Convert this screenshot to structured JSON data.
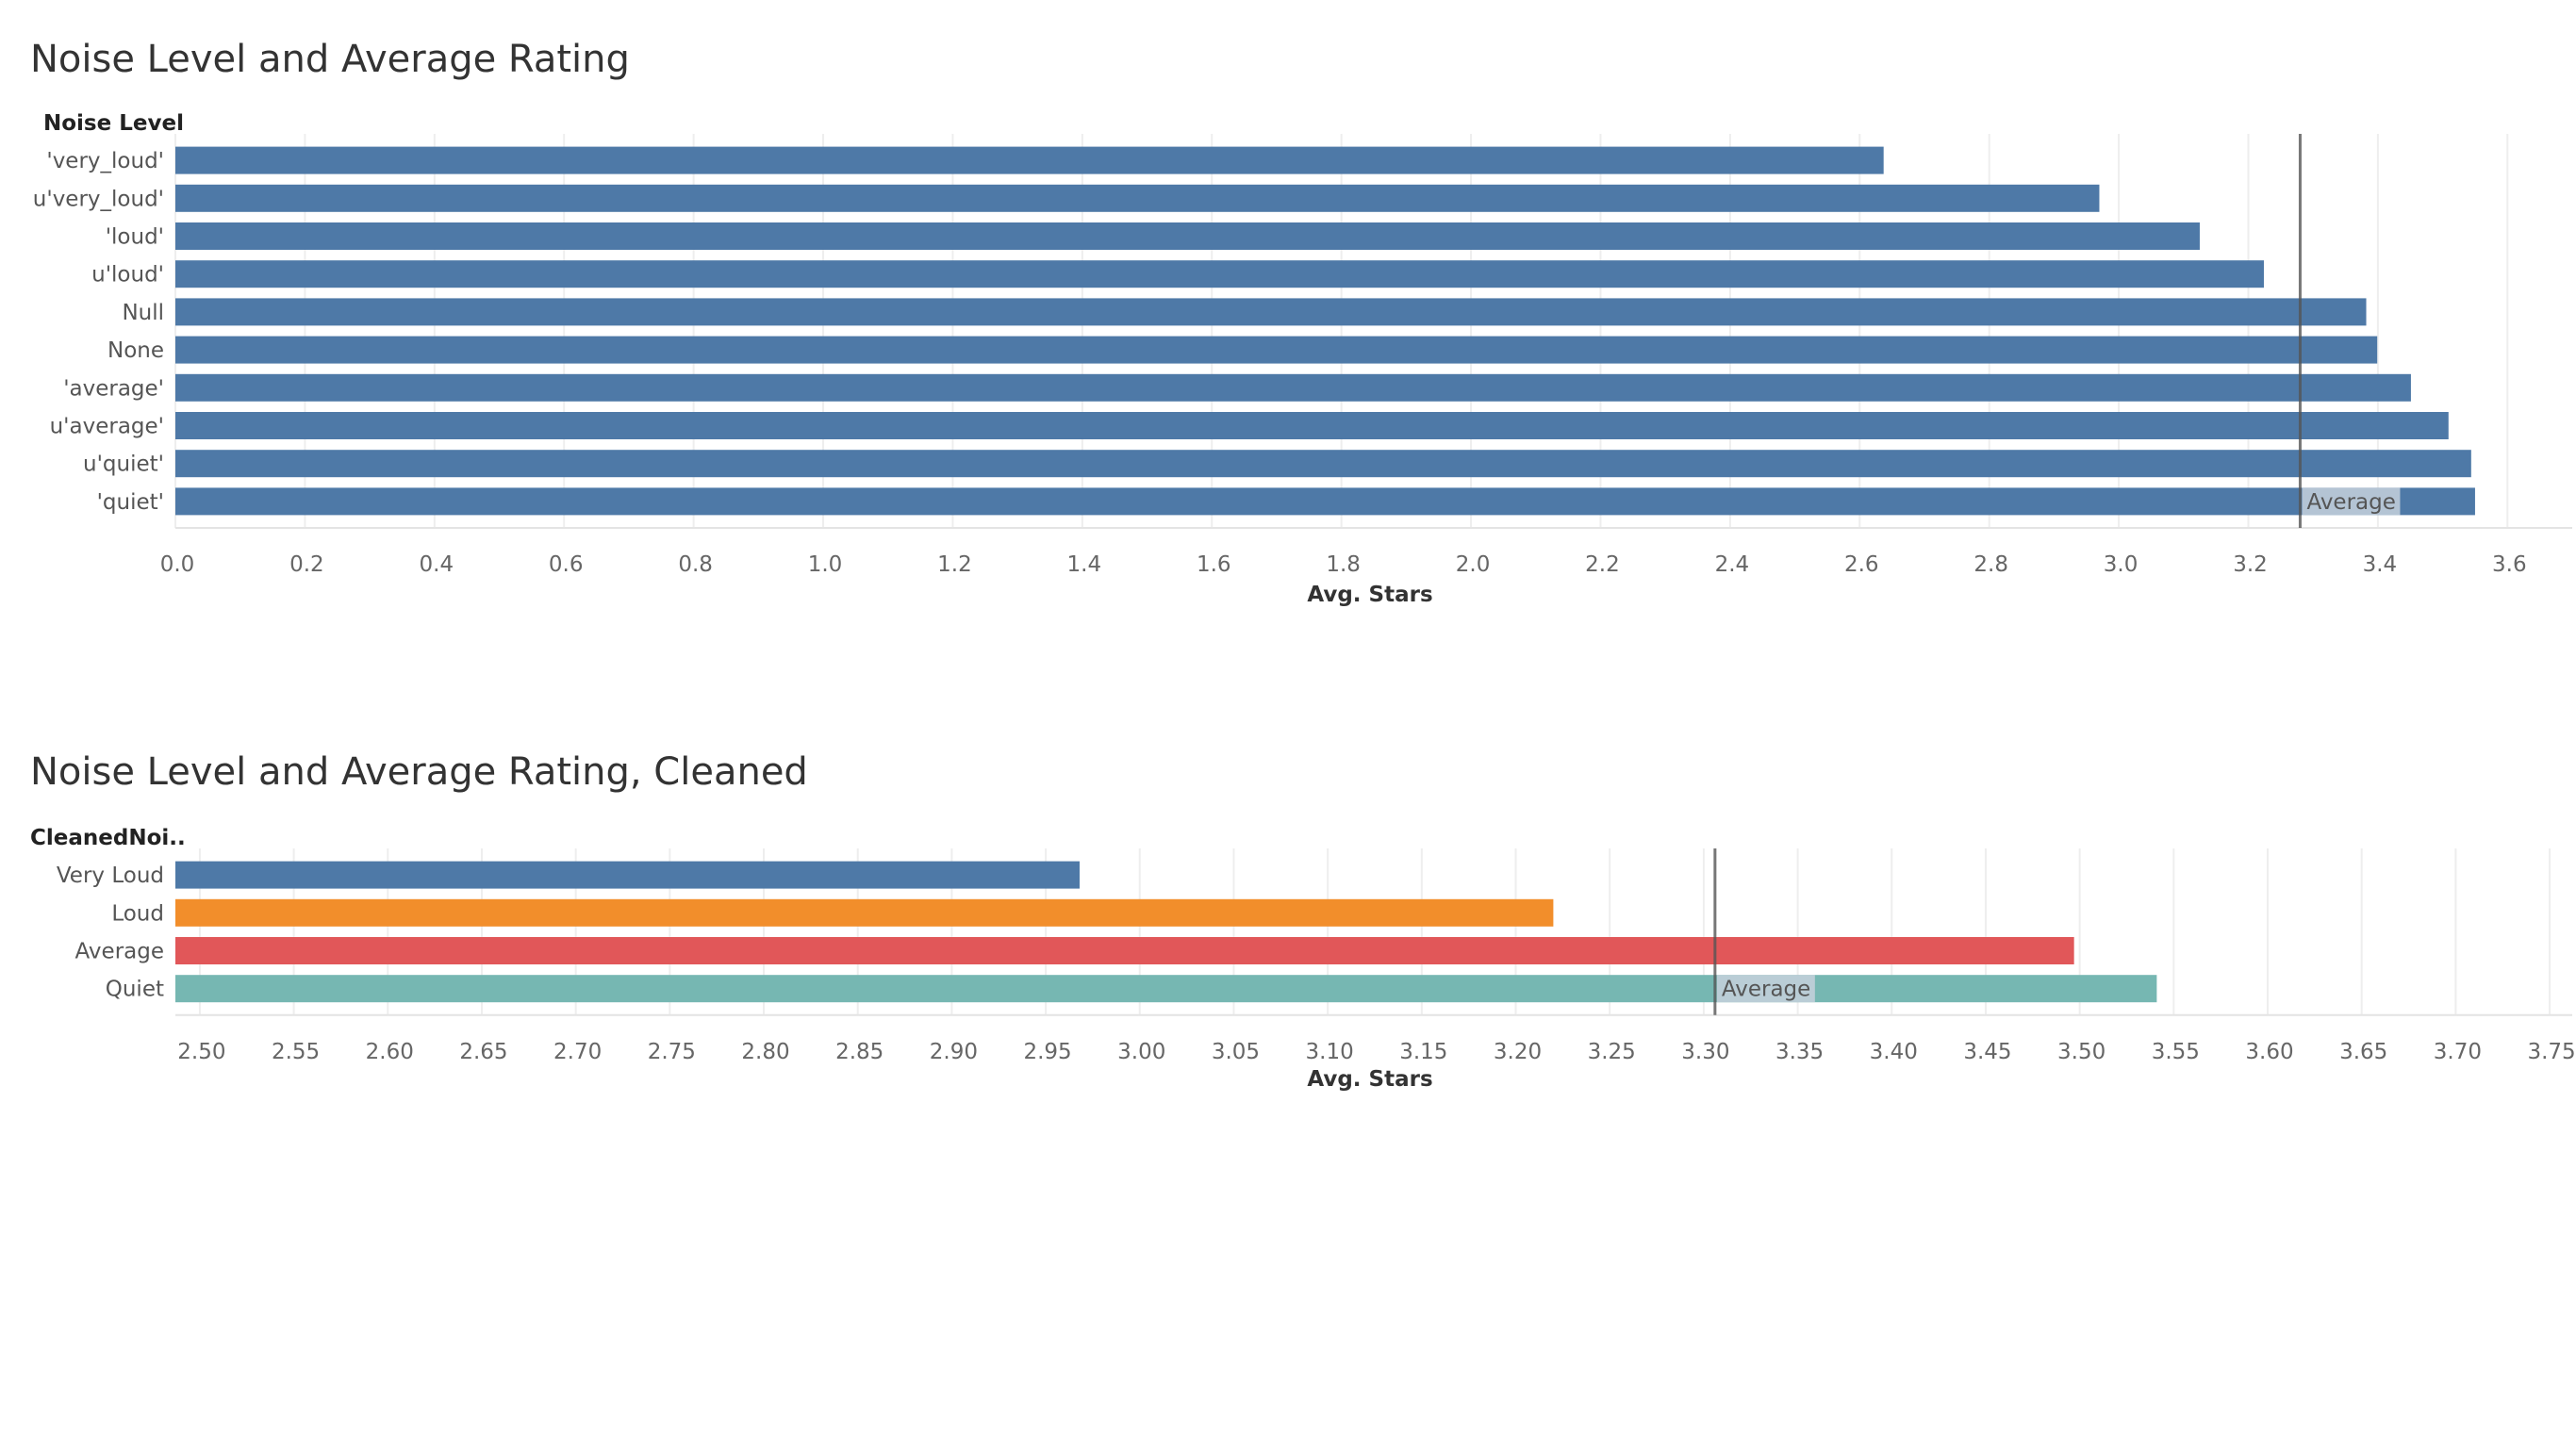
{
  "colors": {
    "bar_blue": "#4e79a7",
    "bar_orange": "#f28e2b",
    "bar_red": "#e15759",
    "bar_teal": "#76b7b2",
    "grid": "#eeeeee",
    "ref_line": "#555555",
    "ref_label_bg": "#c7d1dc"
  },
  "chart_data": [
    {
      "type": "bar",
      "orientation": "horizontal",
      "title": "Noise Level and Average Rating",
      "dimension_header": "Noise Level",
      "xlabel": "Avg. Stars",
      "categories": [
        "'very_loud'",
        "u'very_loud'",
        "'loud'",
        "u'loud'",
        "Null",
        "None",
        "'average'",
        "u'average'",
        "u'quiet'",
        "'quiet'"
      ],
      "values": [
        2.637,
        2.97,
        3.125,
        3.224,
        3.382,
        3.399,
        3.451,
        3.509,
        3.544,
        3.55
      ],
      "colors": [
        "#4e79a7",
        "#4e79a7",
        "#4e79a7",
        "#4e79a7",
        "#4e79a7",
        "#4e79a7",
        "#4e79a7",
        "#4e79a7",
        "#4e79a7",
        "#4e79a7"
      ],
      "xlim": [
        0.0,
        3.7
      ],
      "ticks": [
        0.0,
        0.2,
        0.4,
        0.6,
        0.8,
        1.0,
        1.2,
        1.4,
        1.6,
        1.8,
        2.0,
        2.2,
        2.4,
        2.6,
        2.8,
        3.0,
        3.2,
        3.4,
        3.6
      ],
      "tick_decimals": 1,
      "reference_line": {
        "label": "Average",
        "value": 3.28
      },
      "grid": "vertical"
    },
    {
      "type": "bar",
      "orientation": "horizontal",
      "title": "Noise Level and Average Rating, Cleaned",
      "dimension_header": "CleanedNoi..",
      "xlabel": "Avg. Stars",
      "categories": [
        "Very Loud",
        "Loud",
        "Average",
        "Quiet"
      ],
      "values": [
        2.968,
        3.22,
        3.497,
        3.541
      ],
      "colors": [
        "#4e79a7",
        "#f28e2b",
        "#e15759",
        "#76b7b2"
      ],
      "xlim": [
        2.487,
        3.762
      ],
      "ticks": [
        2.5,
        2.55,
        2.6,
        2.65,
        2.7,
        2.75,
        2.8,
        2.85,
        2.9,
        2.95,
        3.0,
        3.05,
        3.1,
        3.15,
        3.2,
        3.25,
        3.3,
        3.35,
        3.4,
        3.45,
        3.5,
        3.55,
        3.6,
        3.65,
        3.7,
        3.75
      ],
      "tick_decimals": 2,
      "reference_line": {
        "label": "Average",
        "value": 3.306
      },
      "grid": "vertical"
    }
  ]
}
